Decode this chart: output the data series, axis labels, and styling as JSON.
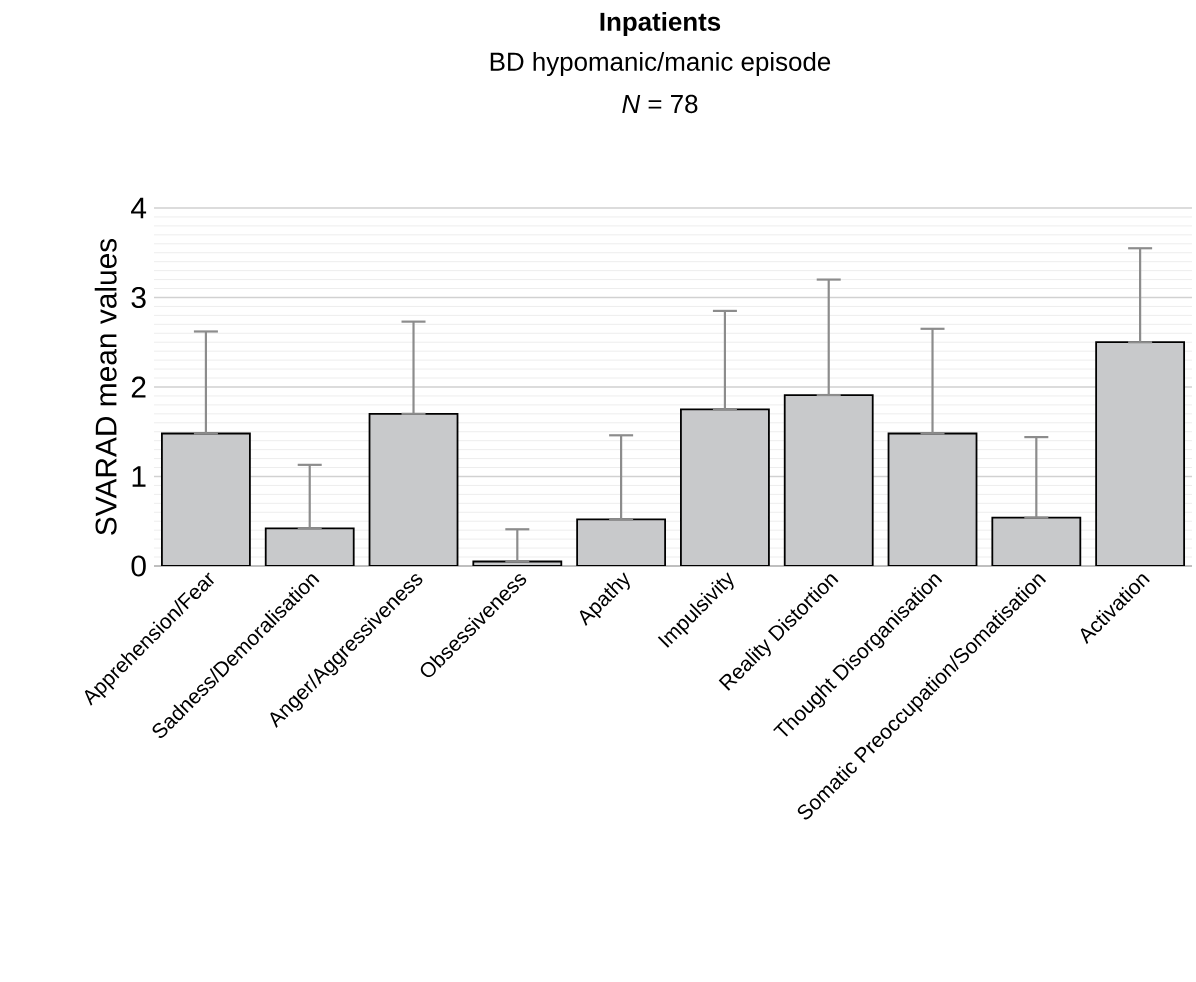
{
  "chart_data": {
    "type": "bar",
    "title": "Inpatients",
    "subtitle": "BD hypomanic/manic episode",
    "annotations": [
      "*N* = 78"
    ],
    "ylabel": "SVARAD mean values",
    "categories": [
      "Apprehension/Fear",
      "Sadness/Demoralisation",
      "Anger/Aggressiveness",
      "Obsessiveness",
      "Apathy",
      "Impulsivity",
      "Reality Distortion",
      "Thought Disorganisation",
      "Somatic Preoccupation/Somatisation",
      "Activation"
    ],
    "values": [
      1.48,
      0.42,
      1.7,
      0.05,
      0.52,
      1.75,
      1.91,
      1.48,
      0.54,
      2.5
    ],
    "errors": [
      [
        1.48,
        2.62
      ],
      [
        0.42,
        1.13
      ],
      [
        1.7,
        2.73
      ],
      [
        0.05,
        0.41
      ],
      [
        0.52,
        1.46
      ],
      [
        1.75,
        2.85
      ],
      [
        1.91,
        3.2
      ],
      [
        1.48,
        2.65
      ],
      [
        0.54,
        1.44
      ],
      [
        2.5,
        3.55
      ]
    ],
    "color": "#c8c9cb",
    "ylim": [
      0,
      4
    ],
    "yticks": [
      0,
      1,
      2,
      3,
      4
    ],
    "grid": "y"
  }
}
